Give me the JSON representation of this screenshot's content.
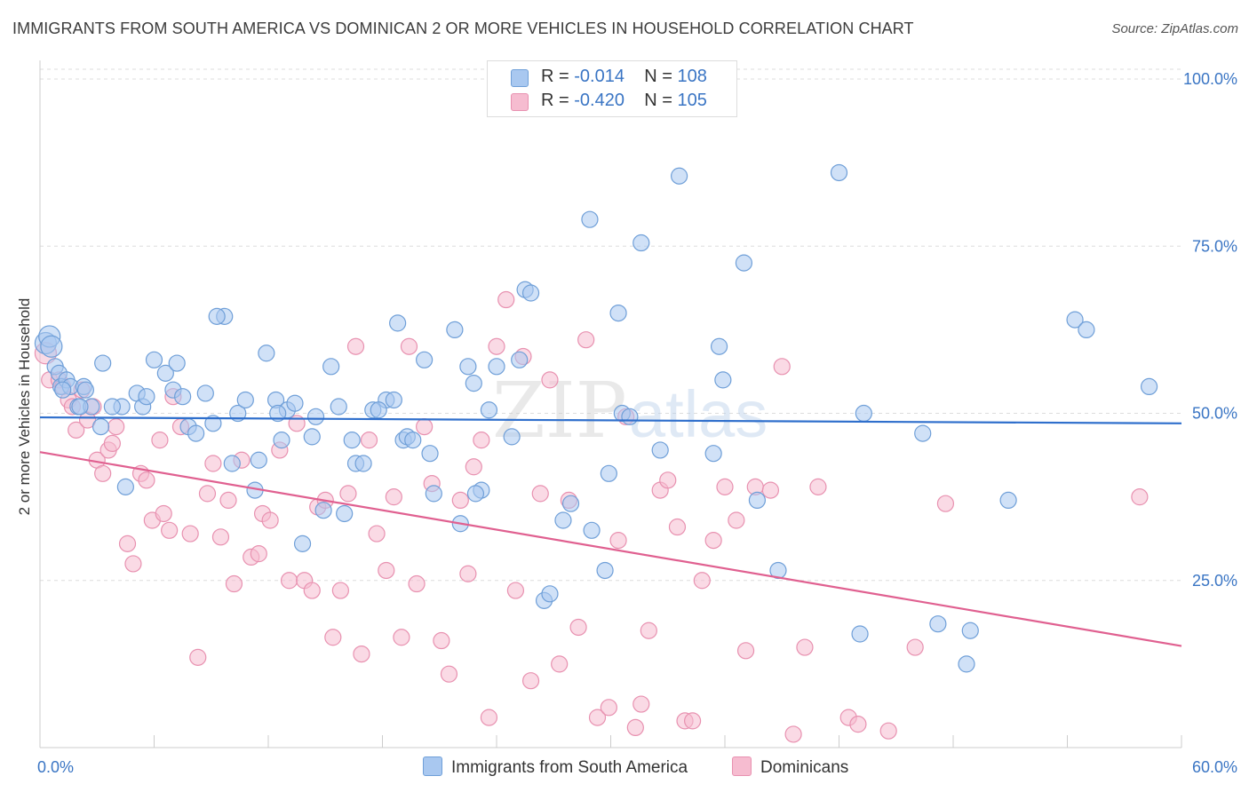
{
  "title": "IMMIGRANTS FROM SOUTH AMERICA VS DOMINICAN 2 OR MORE VEHICLES IN HOUSEHOLD CORRELATION CHART",
  "source": "Source: ZipAtlas.com",
  "watermark": "ZIPatlas",
  "legend": {
    "rows": [
      {
        "r_label": "R = ",
        "r_value": "-0.014",
        "n_label": "N = ",
        "n_value": "108"
      },
      {
        "r_label": "R = ",
        "r_value": "-0.420",
        "n_label": "N = ",
        "n_value": "105"
      }
    ]
  },
  "colors": {
    "blue_fill": "#a9c8f0",
    "blue_stroke": "#6f9fd8",
    "blue_line": "#2f6fcc",
    "pink_fill": "#f6bcd0",
    "pink_stroke": "#e891b0",
    "pink_line": "#e06090",
    "axis_text": "#3a75c4",
    "grid": "#dddddd"
  },
  "chart_data": {
    "type": "scatter",
    "title": "IMMIGRANTS FROM SOUTH AMERICA VS DOMINICAN 2 OR MORE VEHICLES IN HOUSEHOLD CORRELATION CHART",
    "xlabel": "",
    "ylabel": "2 or more Vehicles in Household",
    "xlim": [
      0,
      60
    ],
    "ylim": [
      0,
      102
    ],
    "x_tick_labels": [
      "0.0%",
      "60.0%"
    ],
    "y_tick_labels": [
      "25.0%",
      "50.0%",
      "75.0%",
      "100.0%"
    ],
    "y_ticks": [
      25,
      50,
      75,
      100
    ],
    "grid": true,
    "legend_position": "top-center",
    "series": [
      {
        "name": "Immigrants from South America",
        "color": "#a9c8f0",
        "trend": {
          "x": [
            0,
            60
          ],
          "y": [
            49.4,
            48.5
          ]
        },
        "points": [
          [
            0.3,
            60.5
          ],
          [
            0.5,
            61.5
          ],
          [
            0.8,
            57
          ],
          [
            1.0,
            56
          ],
          [
            1.1,
            54
          ],
          [
            1.4,
            55
          ],
          [
            1.6,
            54
          ],
          [
            2.0,
            51
          ],
          [
            2.3,
            54
          ],
          [
            2.4,
            53.5
          ],
          [
            2.7,
            51
          ],
          [
            3.2,
            48
          ],
          [
            3.3,
            57.5
          ],
          [
            4.3,
            51
          ],
          [
            4.5,
            39
          ],
          [
            5.1,
            53
          ],
          [
            5.4,
            51
          ],
          [
            5.6,
            52.5
          ],
          [
            6.0,
            58
          ],
          [
            6.6,
            56
          ],
          [
            7.0,
            53.5
          ],
          [
            7.2,
            57.5
          ],
          [
            7.5,
            52.5
          ],
          [
            7.8,
            48
          ],
          [
            8.2,
            47
          ],
          [
            8.7,
            53
          ],
          [
            9.1,
            48.5
          ],
          [
            9.7,
            64.5
          ],
          [
            10.1,
            42.5
          ],
          [
            10.4,
            50
          ],
          [
            10.8,
            52
          ],
          [
            11.3,
            38.5
          ],
          [
            11.5,
            43
          ],
          [
            11.9,
            59
          ],
          [
            12.4,
            52
          ],
          [
            12.7,
            46
          ],
          [
            13.0,
            50.5
          ],
          [
            13.4,
            51.5
          ],
          [
            13.8,
            30.5
          ],
          [
            14.3,
            46.5
          ],
          [
            14.5,
            49.5
          ],
          [
            14.9,
            35.5
          ],
          [
            15.3,
            57
          ],
          [
            15.7,
            51
          ],
          [
            16.0,
            35
          ],
          [
            16.4,
            46
          ],
          [
            16.6,
            42.5
          ],
          [
            17.0,
            42.5
          ],
          [
            17.5,
            50.5
          ],
          [
            18.2,
            52
          ],
          [
            18.6,
            52
          ],
          [
            18.8,
            63.5
          ],
          [
            19.1,
            46
          ],
          [
            19.3,
            46.5
          ],
          [
            19.6,
            46
          ],
          [
            20.2,
            58
          ],
          [
            20.5,
            44
          ],
          [
            20.7,
            38
          ],
          [
            21.8,
            62.5
          ],
          [
            22.1,
            33.5
          ],
          [
            22.5,
            57
          ],
          [
            22.8,
            54.5
          ],
          [
            23.2,
            38.5
          ],
          [
            23.6,
            50.5
          ],
          [
            24.0,
            57
          ],
          [
            24.8,
            46.5
          ],
          [
            25.2,
            58
          ],
          [
            25.5,
            68.5
          ],
          [
            26.5,
            22
          ],
          [
            26.8,
            23
          ],
          [
            27.5,
            34
          ],
          [
            27.9,
            36.5
          ],
          [
            28.9,
            79
          ],
          [
            29.0,
            32.5
          ],
          [
            29.7,
            26.5
          ],
          [
            29.9,
            41
          ],
          [
            30.4,
            65
          ],
          [
            30.6,
            50
          ],
          [
            31.0,
            49.5
          ],
          [
            31.6,
            75.5
          ],
          [
            32.6,
            44.5
          ],
          [
            33.6,
            85.5
          ],
          [
            35.4,
            44
          ],
          [
            35.7,
            60
          ],
          [
            35.9,
            55
          ],
          [
            37.0,
            72.5
          ],
          [
            37.7,
            37
          ],
          [
            38.8,
            26.5
          ],
          [
            42.0,
            86
          ],
          [
            43.1,
            17
          ],
          [
            43.3,
            50
          ],
          [
            46.4,
            47
          ],
          [
            47.2,
            18.5
          ],
          [
            48.7,
            12.5
          ],
          [
            48.9,
            17.5
          ],
          [
            50.9,
            37
          ],
          [
            54.4,
            64
          ],
          [
            55.0,
            62.5
          ],
          [
            58.3,
            54
          ],
          [
            0.6,
            60
          ],
          [
            1.2,
            53.5
          ],
          [
            2.1,
            51
          ],
          [
            3.8,
            51
          ],
          [
            9.3,
            64.5
          ],
          [
            12.5,
            50
          ],
          [
            17.8,
            50.5
          ],
          [
            22.9,
            38
          ],
          [
            25.8,
            68
          ]
        ]
      },
      {
        "name": "Dominicans",
        "color": "#f6bcd0",
        "trend": {
          "x": [
            0,
            60
          ],
          "y": [
            44.2,
            15.2
          ]
        },
        "points": [
          [
            0.3,
            59
          ],
          [
            0.5,
            55
          ],
          [
            1.0,
            55
          ],
          [
            1.2,
            54
          ],
          [
            1.5,
            52
          ],
          [
            1.9,
            47.5
          ],
          [
            2.2,
            53.5
          ],
          [
            2.5,
            49
          ],
          [
            2.8,
            51
          ],
          [
            3.0,
            43
          ],
          [
            3.3,
            41
          ],
          [
            3.6,
            44.5
          ],
          [
            3.8,
            45.5
          ],
          [
            4.0,
            48
          ],
          [
            4.6,
            30.5
          ],
          [
            4.9,
            27.5
          ],
          [
            5.3,
            41
          ],
          [
            5.6,
            40
          ],
          [
            5.9,
            34
          ],
          [
            6.3,
            46
          ],
          [
            6.5,
            35
          ],
          [
            6.8,
            32.5
          ],
          [
            7.0,
            52.5
          ],
          [
            7.4,
            48
          ],
          [
            7.9,
            32
          ],
          [
            8.3,
            13.5
          ],
          [
            8.8,
            38
          ],
          [
            9.1,
            42.5
          ],
          [
            9.5,
            31.5
          ],
          [
            9.9,
            37
          ],
          [
            10.2,
            24.5
          ],
          [
            10.6,
            43
          ],
          [
            11.1,
            28.5
          ],
          [
            11.5,
            29
          ],
          [
            11.7,
            35
          ],
          [
            12.1,
            34
          ],
          [
            12.6,
            44.5
          ],
          [
            13.1,
            25
          ],
          [
            13.5,
            48.5
          ],
          [
            13.9,
            25
          ],
          [
            14.3,
            23.5
          ],
          [
            14.6,
            36
          ],
          [
            15.0,
            37
          ],
          [
            15.4,
            16.5
          ],
          [
            15.8,
            23.5
          ],
          [
            16.2,
            38
          ],
          [
            16.6,
            60
          ],
          [
            16.9,
            14
          ],
          [
            17.3,
            46
          ],
          [
            17.7,
            32
          ],
          [
            18.2,
            26.5
          ],
          [
            18.6,
            37.5
          ],
          [
            19.0,
            16.5
          ],
          [
            19.4,
            60
          ],
          [
            19.8,
            24.5
          ],
          [
            20.2,
            48
          ],
          [
            20.6,
            39.5
          ],
          [
            21.1,
            16
          ],
          [
            21.5,
            11
          ],
          [
            22.1,
            37
          ],
          [
            22.5,
            26
          ],
          [
            22.8,
            42
          ],
          [
            23.2,
            46
          ],
          [
            23.6,
            4.5
          ],
          [
            24.0,
            60
          ],
          [
            24.5,
            67
          ],
          [
            25.0,
            23.5
          ],
          [
            25.4,
            58.5
          ],
          [
            25.8,
            10
          ],
          [
            26.3,
            38
          ],
          [
            26.8,
            55
          ],
          [
            27.3,
            12.5
          ],
          [
            27.8,
            37
          ],
          [
            28.3,
            18
          ],
          [
            29.3,
            4.5
          ],
          [
            29.9,
            6
          ],
          [
            30.4,
            31
          ],
          [
            30.8,
            49.5
          ],
          [
            31.3,
            3
          ],
          [
            31.6,
            6.5
          ],
          [
            32.0,
            17.5
          ],
          [
            32.6,
            38.5
          ],
          [
            33.0,
            40
          ],
          [
            33.5,
            33
          ],
          [
            33.9,
            4
          ],
          [
            34.3,
            4
          ],
          [
            34.8,
            25
          ],
          [
            35.4,
            31
          ],
          [
            36.0,
            39
          ],
          [
            36.6,
            34
          ],
          [
            37.1,
            14.5
          ],
          [
            37.6,
            39
          ],
          [
            38.4,
            38.5
          ],
          [
            39.0,
            57
          ],
          [
            39.6,
            2
          ],
          [
            40.2,
            15
          ],
          [
            40.9,
            39
          ],
          [
            42.5,
            4.5
          ],
          [
            43.0,
            3.5
          ],
          [
            44.6,
            2.5
          ],
          [
            46.0,
            15
          ],
          [
            47.6,
            36.5
          ],
          [
            57.8,
            37.5
          ],
          [
            1.7,
            51
          ],
          [
            28.7,
            61
          ]
        ]
      }
    ]
  },
  "bottom_legend": [
    {
      "label": "Immigrants from South America"
    },
    {
      "label": "Dominicans"
    }
  ]
}
